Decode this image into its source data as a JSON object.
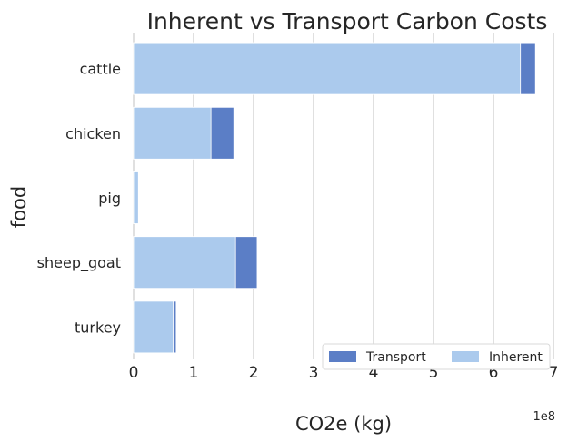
{
  "chart_data": {
    "type": "bar",
    "orientation": "horizontal",
    "stacked": "overlay",
    "title": "Inherent vs Transport Carbon Costs",
    "xlabel": "CO2e (kg)",
    "ylabel": "food",
    "x_scale_label": "1e8",
    "xlim": [
      0,
      7
    ],
    "x_ticks": [
      "0",
      "1",
      "2",
      "3",
      "4",
      "5",
      "6",
      "7"
    ],
    "grid": "vertical",
    "legend_position": "bottom-right",
    "categories": [
      "cattle",
      "chicken",
      "pig",
      "sheep_goat",
      "turkey"
    ],
    "series": [
      {
        "name": "Transport",
        "color": "#5b7ec6",
        "values": [
          6.7,
          1.67,
          0.08,
          2.06,
          0.71
        ]
      },
      {
        "name": "Inherent",
        "color": "#abcaed",
        "values": [
          6.45,
          1.29,
          0.08,
          1.7,
          0.66
        ]
      }
    ]
  }
}
